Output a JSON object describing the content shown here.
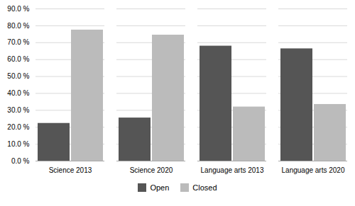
{
  "chart_data": {
    "type": "bar",
    "categories": [
      "Science 2013",
      "Science 2020",
      "Language arts 2013",
      "Language arts 2020"
    ],
    "series": [
      {
        "name": "Open",
        "color": "#555555",
        "values": [
          0.223,
          0.255,
          0.68,
          0.664
        ]
      },
      {
        "name": "Closed",
        "color": "#bbbbbb",
        "values": [
          0.775,
          0.745,
          0.32,
          0.335
        ]
      }
    ],
    "ylim": [
      0,
      0.9
    ],
    "yticks": [
      {
        "value": 0.0,
        "label": "0.0 %"
      },
      {
        "value": 0.1,
        "label": "10.0 %"
      },
      {
        "value": 0.2,
        "label": "20.0 %"
      },
      {
        "value": 0.3,
        "label": "30.0 %"
      },
      {
        "value": 0.4,
        "label": "40.0 %"
      },
      {
        "value": 0.5,
        "label": "50.0 %"
      },
      {
        "value": 0.6,
        "label": "60.0 %"
      },
      {
        "value": 0.7,
        "label": "70.0 %"
      },
      {
        "value": 0.8,
        "label": "80.0 %"
      },
      {
        "value": 0.9,
        "label": "90.0 %"
      }
    ],
    "grid": true,
    "legend": "bottom"
  }
}
